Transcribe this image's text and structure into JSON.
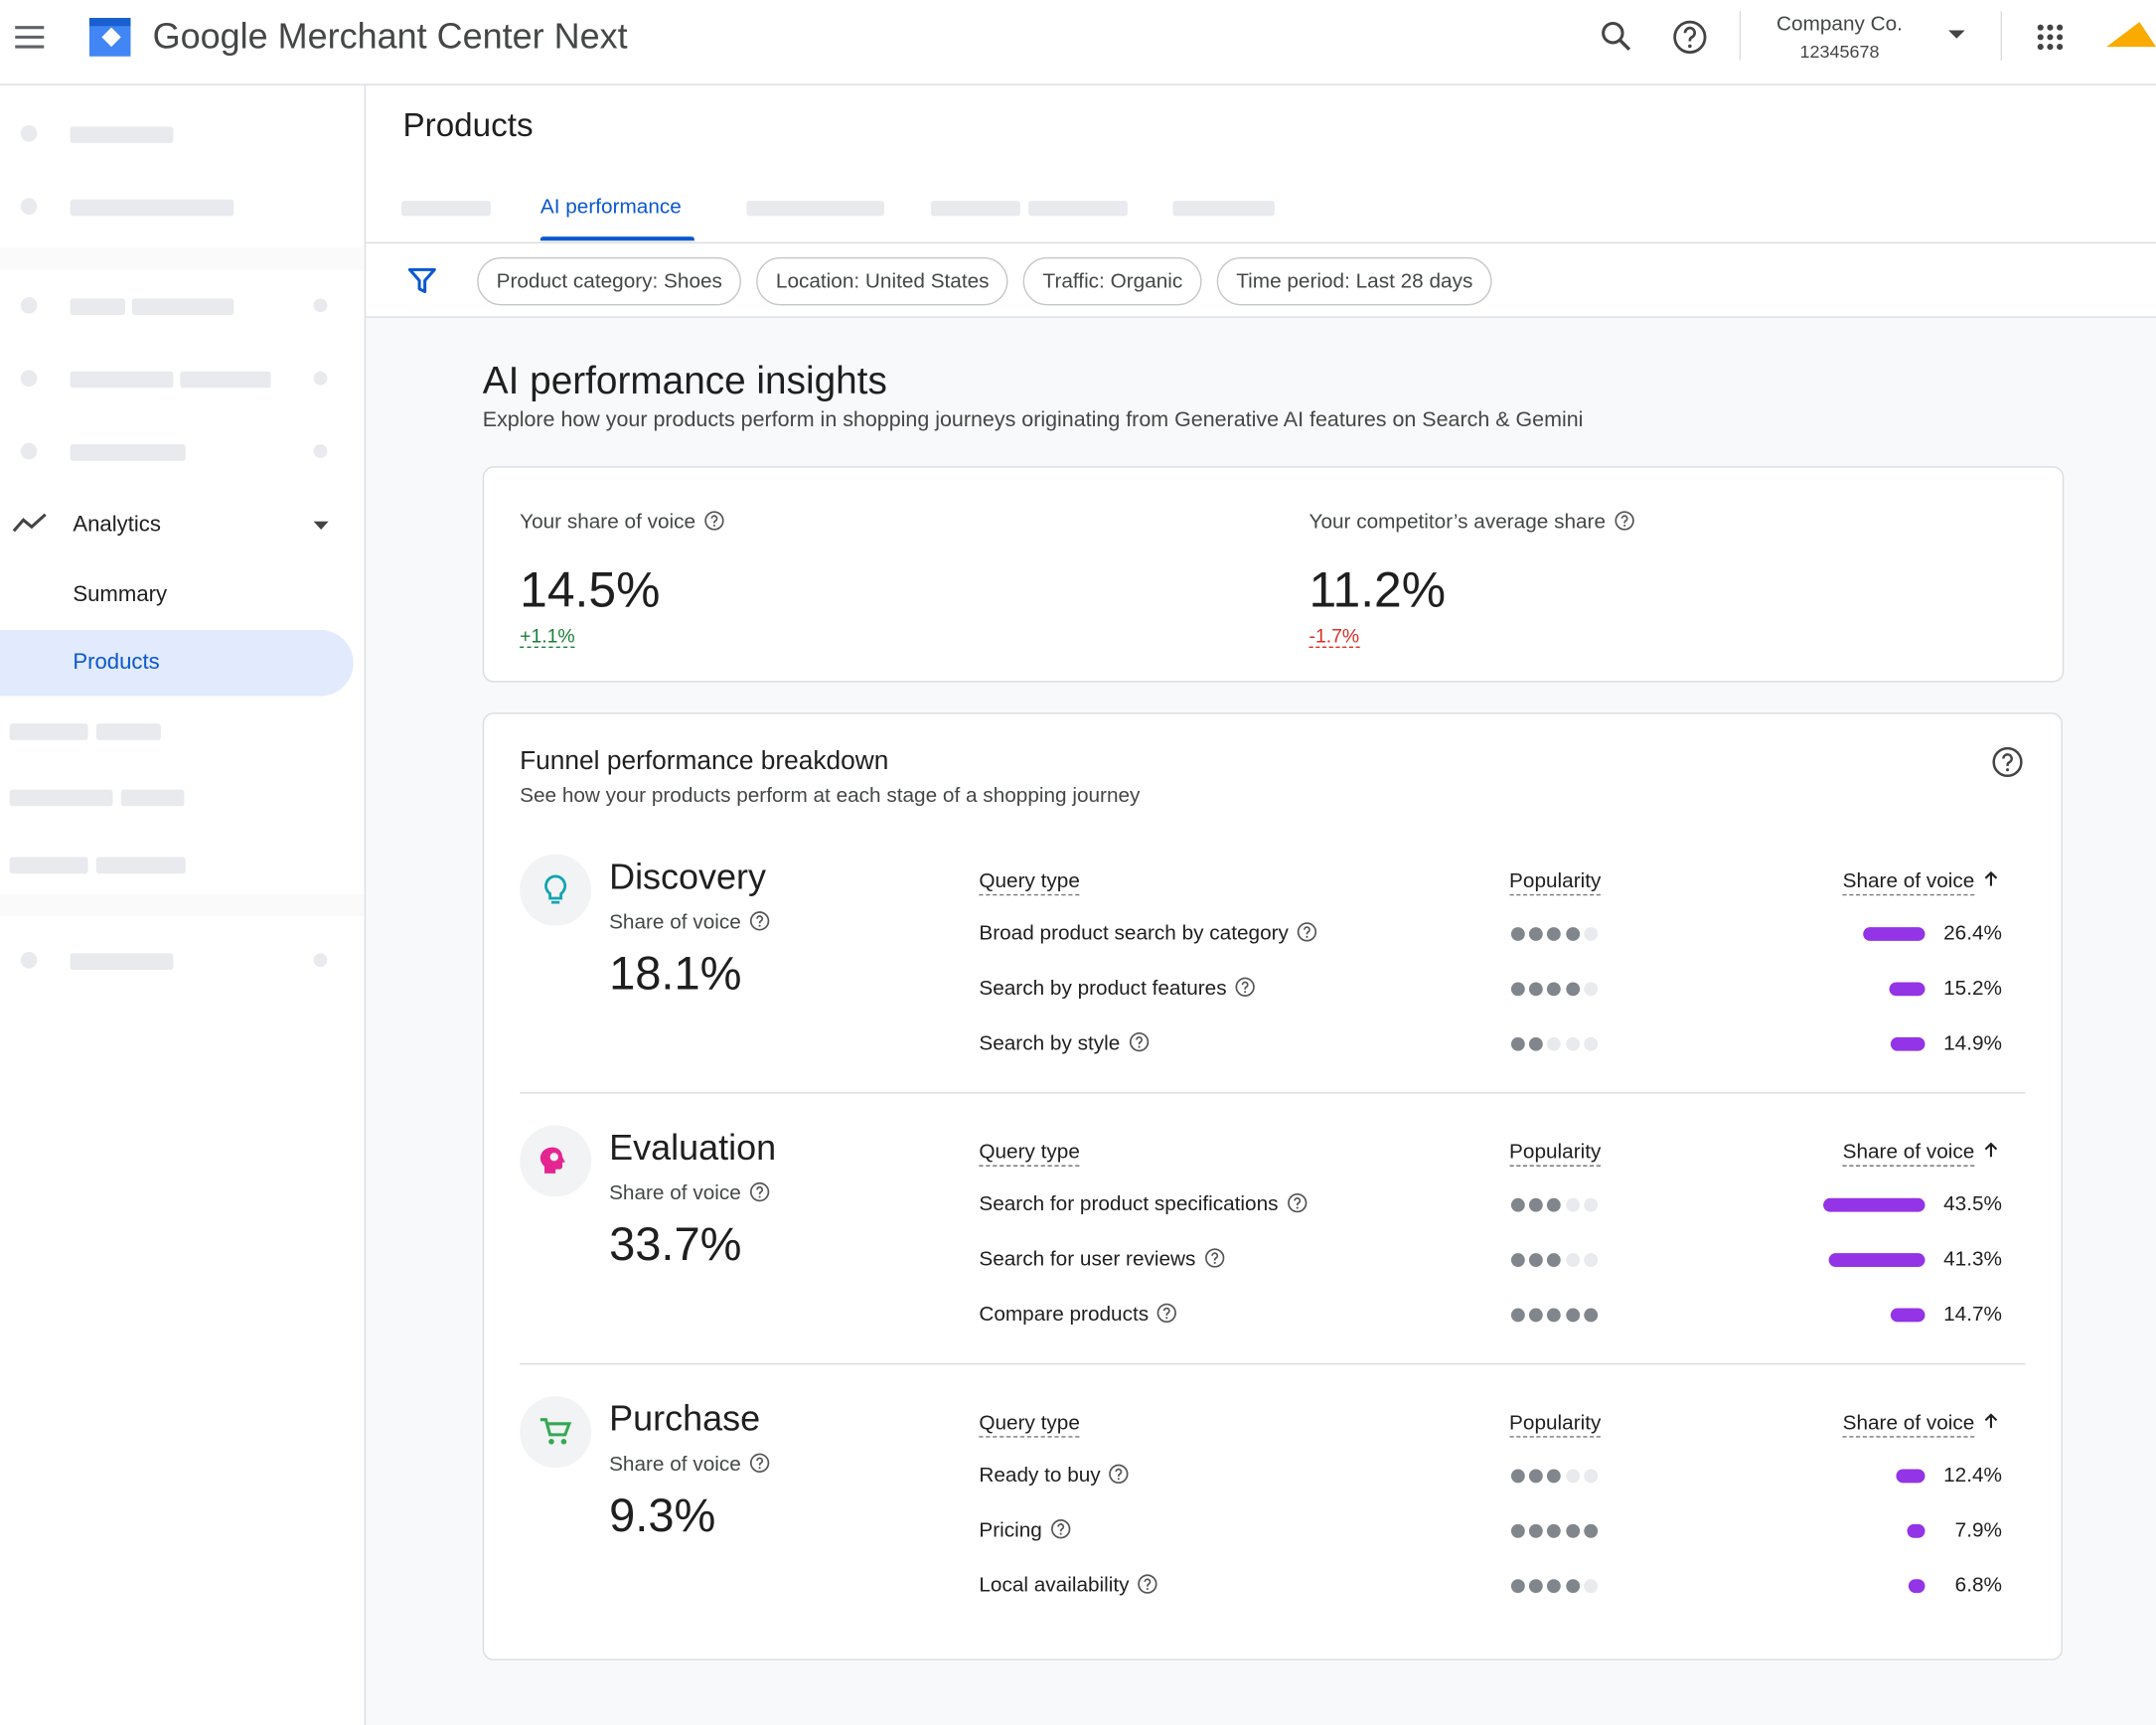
{
  "header": {
    "product_name": "Google Merchant Center Next",
    "account_name": "Company Co.",
    "account_id": "12345678"
  },
  "sidebar": {
    "section": "Analytics",
    "items": [
      "Summary",
      "Products"
    ]
  },
  "page": {
    "title": "Products",
    "active_tab": "AI performance",
    "filters": [
      "Product category: Shoes",
      "Location: United States",
      "Traffic: Organic",
      "Time period: Last 28 days"
    ]
  },
  "insights": {
    "title": "AI performance insights",
    "subtitle": "Explore how your products perform in shopping journeys originating from Generative AI features on Search & Gemini",
    "metrics": [
      {
        "label": "Your share of voice",
        "value": "14.5%",
        "change": "+1.1%"
      },
      {
        "label": "Your competitor’s average share",
        "value": "11.2%",
        "change": "-1.7%"
      }
    ]
  },
  "funnel": {
    "title": "Funnel performance breakdown",
    "subtitle": "See how your products perform at each stage of a shopping journey",
    "metric_label": "Share of voice",
    "columns": [
      "Query type",
      "Popularity",
      "Share of voice"
    ],
    "popularity_scale": 5,
    "stages": [
      {
        "name": "Discovery",
        "share": "18.1%",
        "rows": [
          {
            "query": "Broad product search by category",
            "popularity": 4,
            "share": 26.4,
            "share_label": "26.4%"
          },
          {
            "query": "Search by product features",
            "popularity": 4,
            "share": 15.2,
            "share_label": "15.2%"
          },
          {
            "query": "Search by style",
            "popularity": 2,
            "share": 14.9,
            "share_label": "14.9%"
          }
        ]
      },
      {
        "name": "Evaluation",
        "share": "33.7%",
        "rows": [
          {
            "query": "Search for product specifications",
            "popularity": 3,
            "share": 43.5,
            "share_label": "43.5%"
          },
          {
            "query": "Search for user reviews",
            "popularity": 3,
            "share": 41.3,
            "share_label": "41.3%"
          },
          {
            "query": "Compare products",
            "popularity": 5,
            "share": 14.7,
            "share_label": "14.7%"
          }
        ]
      },
      {
        "name": "Purchase",
        "share": "9.3%",
        "rows": [
          {
            "query": "Ready to buy",
            "popularity": 3,
            "share": 12.4,
            "share_label": "12.4%"
          },
          {
            "query": "Pricing",
            "popularity": 5,
            "share": 7.9,
            "share_label": "7.9%"
          },
          {
            "query": "Local availability",
            "popularity": 4,
            "share": 6.8,
            "share_label": "6.8%"
          }
        ]
      }
    ]
  }
}
